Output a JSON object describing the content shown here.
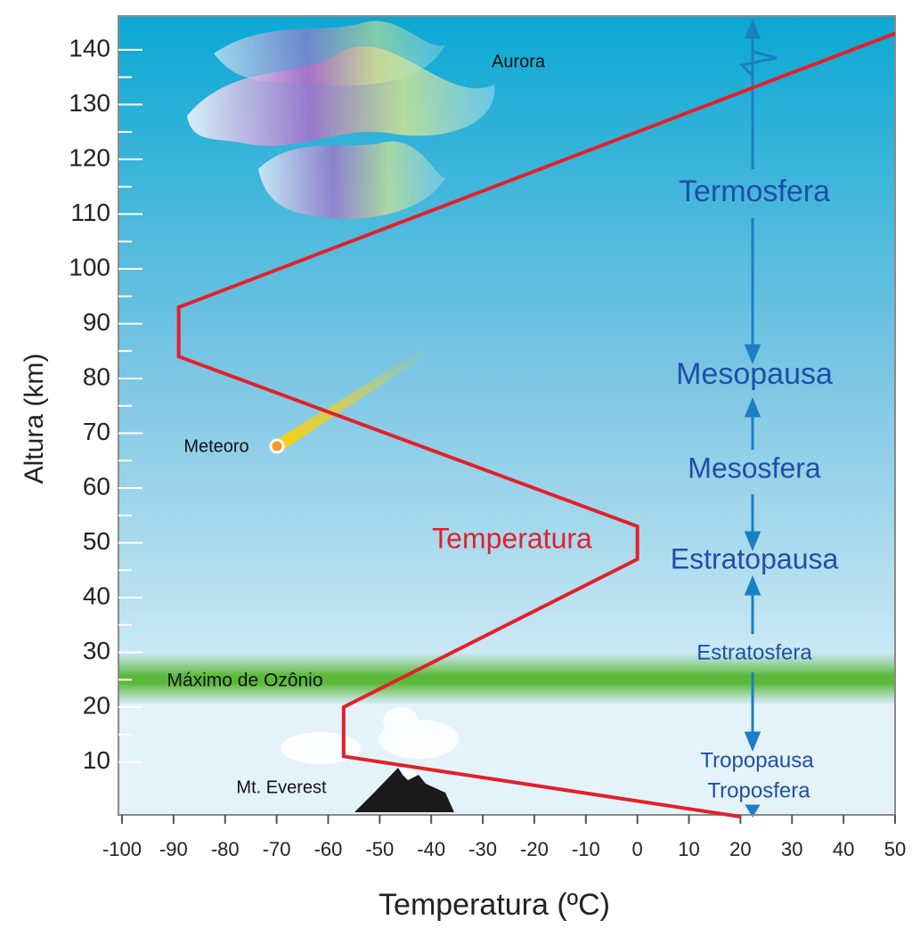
{
  "chart_data": {
    "type": "line",
    "x_label": "Temperatura (ºC)",
    "y_label": "Altura (km)",
    "x": [
      20,
      -57,
      -57,
      0,
      0,
      -89,
      -89,
      50
    ],
    "series": [
      {
        "name": "Temperatura",
        "color": "#e3202a",
        "values": [
          0,
          11,
          20,
          47,
          53,
          84,
          93,
          143
        ]
      }
    ],
    "xlim": [
      -100,
      50
    ],
    "xticks": [
      -100,
      -90,
      -80,
      -70,
      -60,
      -50,
      -40,
      -30,
      -20,
      -10,
      0,
      10,
      20,
      30,
      40,
      50
    ],
    "ylim": [
      0,
      146
    ],
    "yticks": [
      10,
      20,
      30,
      40,
      50,
      60,
      70,
      80,
      90,
      100,
      110,
      120,
      130,
      140
    ],
    "annotations": [
      "Aurora",
      "Meteoro",
      "Máximo de Ozônio",
      "Mt. Everest",
      "Termosfera",
      "Mesopausa",
      "Mesosfera",
      "Estratopausa",
      "Estratosfera",
      "Tropopausa",
      "Troposfera"
    ]
  }
}
